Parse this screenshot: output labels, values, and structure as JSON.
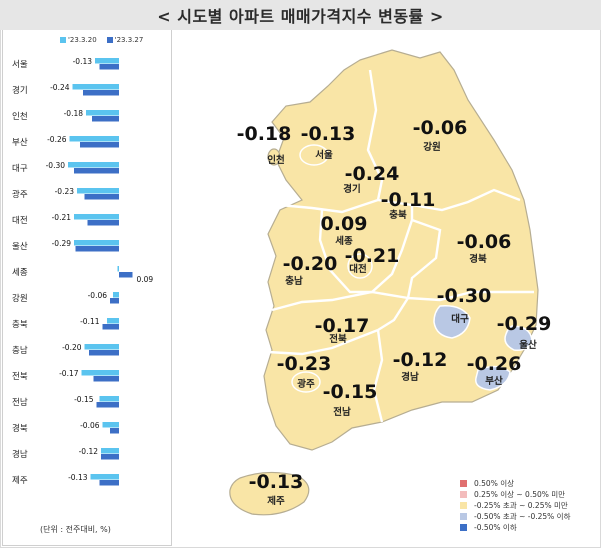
{
  "title": "< 시도별 아파트 매매가격지수 변동률 >",
  "unit_note": "(단위 : 전주대비, %)",
  "colors": {
    "prev_week": "#5bc4ef",
    "this_week": "#3c6fc6",
    "map_fill": "#f9e5a6",
    "map_stroke": "#b6ad92",
    "metro_fill": "#b9c8e4",
    "title_bg": "#e6e6e6"
  },
  "chart_data": [
    {
      "type": "bar",
      "orientation": "horizontal",
      "categories": [
        "서울",
        "경기",
        "인천",
        "부산",
        "대구",
        "광주",
        "대전",
        "울산",
        "세종",
        "강원",
        "충북",
        "충남",
        "전북",
        "전남",
        "경북",
        "경남",
        "제주"
      ],
      "series": [
        {
          "name": "'23.3.20",
          "values": [
            -0.16,
            -0.31,
            -0.22,
            -0.33,
            -0.34,
            -0.28,
            -0.3,
            -0.3,
            -0.01,
            -0.04,
            -0.08,
            -0.23,
            -0.25,
            -0.13,
            -0.11,
            -0.12,
            -0.19
          ]
        },
        {
          "name": "'23.3.27",
          "values": [
            -0.13,
            -0.24,
            -0.18,
            -0.26,
            -0.3,
            -0.23,
            -0.21,
            -0.29,
            0.09,
            -0.06,
            -0.11,
            -0.2,
            -0.17,
            -0.15,
            -0.06,
            -0.12,
            -0.13
          ]
        }
      ],
      "data_labels": [
        "-0.13",
        "-0.24",
        "-0.18",
        "-0.26",
        "-0.30",
        "-0.23",
        "-0.21",
        "-0.29",
        "0.09",
        "-0.06",
        "-0.11",
        "-0.20",
        "-0.17",
        "-0.15",
        "-0.06",
        "-0.12",
        "-0.13"
      ],
      "legend_position": "top",
      "grid": false
    },
    {
      "type": "map",
      "regions": [
        {
          "name": "인천",
          "value": "-0.18"
        },
        {
          "name": "서울",
          "value": "-0.13"
        },
        {
          "name": "강원",
          "value": "-0.06"
        },
        {
          "name": "경기",
          "value": "-0.24"
        },
        {
          "name": "충북",
          "value": "-0.11"
        },
        {
          "name": "세종",
          "value": "0.09"
        },
        {
          "name": "대전",
          "value": "-0.21"
        },
        {
          "name": "충남",
          "value": "-0.20"
        },
        {
          "name": "경북",
          "value": "-0.06"
        },
        {
          "name": "대구",
          "value": "-0.30"
        },
        {
          "name": "울산",
          "value": "-0.29"
        },
        {
          "name": "전북",
          "value": "-0.17"
        },
        {
          "name": "경남",
          "value": "-0.12"
        },
        {
          "name": "부산",
          "value": "-0.26"
        },
        {
          "name": "광주",
          "value": "-0.23"
        },
        {
          "name": "전남",
          "value": "-0.15"
        },
        {
          "name": "제주",
          "value": "-0.13"
        }
      ],
      "legend": [
        {
          "label": "0.50% 이상",
          "color": "#e06f6f"
        },
        {
          "label": "0.25% 이상 ~ 0.50% 미만",
          "color": "#f3bcbc"
        },
        {
          "label": "-0.25% 초과 ~ 0.25% 미만",
          "color": "#f9e5a6"
        },
        {
          "label": "-0.50% 초과 ~ -0.25% 이하",
          "color": "#b9c8e4"
        },
        {
          "label": "-0.50% 이하",
          "color": "#3c6fc6"
        }
      ],
      "legend_position": "bottom-right"
    }
  ]
}
